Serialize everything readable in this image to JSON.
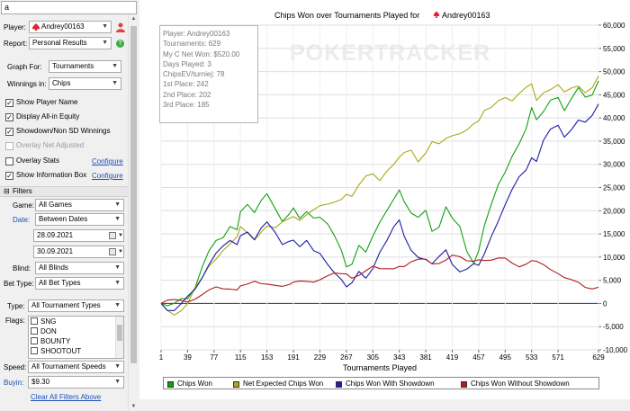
{
  "search": {
    "value": "a"
  },
  "player": {
    "label": "Player:",
    "value": "Andrey00163"
  },
  "report": {
    "label": "Report:",
    "value": "Personal Results"
  },
  "graph_for": {
    "label": "Graph For:",
    "value": "Tournaments"
  },
  "winnings_in": {
    "label": "Winnings in:",
    "value": "Chips"
  },
  "options": [
    {
      "label": "Show Player Name",
      "checked": true,
      "disabled": false
    },
    {
      "label": "Display All-in Equity",
      "checked": true,
      "disabled": false
    },
    {
      "label": "Showdown/Non SD Winnings",
      "checked": true,
      "disabled": false
    },
    {
      "label": "Overlay Net Adjusted",
      "checked": false,
      "disabled": true
    },
    {
      "label": "Overlay Stats",
      "checked": false,
      "disabled": false,
      "link": "Configure"
    },
    {
      "label": "Show Information Box",
      "checked": true,
      "disabled": false,
      "link": "Configure"
    }
  ],
  "filters": {
    "header": "Filters",
    "game": {
      "label": "Game:",
      "value": "All Games"
    },
    "date": {
      "label": "Date:",
      "value": "Between Dates",
      "from": "28.09.2021",
      "to": "30.09.2021"
    },
    "blind": {
      "label": "Blind:",
      "value": "All Blinds"
    },
    "bet_type": {
      "label": "Bet Type:",
      "value": "All Bet Types"
    },
    "type": {
      "label": "Type:",
      "value": "All Tournament Types"
    },
    "flags": {
      "label": "Flags:",
      "items": [
        "SNG",
        "DON",
        "BOUNTY",
        "SHOOTOUT"
      ]
    },
    "speed": {
      "label": "Speed:",
      "value": "All Tournament Speeds"
    },
    "buyin": {
      "label": "Buyin:",
      "value": "$9.30"
    },
    "clear_link": "Clear All Filters Above"
  },
  "info_box": {
    "lines": [
      "Player: Andrey00163",
      "Tournaments: 629",
      "My C Net Won: $520.00",
      "Days Played: 3",
      "ChipsEV/turniej: 78",
      "1st Place: 242",
      "2nd Place: 202",
      "3rd Place: 185"
    ]
  },
  "watermark": "POKERTRACKER",
  "colors": {
    "chips_won": "#11a011",
    "net_expected": "#a8a818",
    "with_showdown": "#1c1ca8",
    "without_showdown": "#b01c1c"
  },
  "chart_data": {
    "type": "line",
    "title": "Chips Won over Tournaments Played for",
    "title_player": "Andrey00163",
    "xlabel": "Tournaments Played",
    "ylabel": "",
    "xlim": [
      1,
      629
    ],
    "ylim": [
      -10000,
      60000
    ],
    "x_ticks": [
      1,
      39,
      77,
      115,
      153,
      191,
      229,
      267,
      305,
      343,
      381,
      419,
      457,
      495,
      533,
      571,
      629
    ],
    "y_ticks": [
      -10000,
      -5000,
      0,
      5000,
      10000,
      15000,
      20000,
      25000,
      30000,
      35000,
      40000,
      45000,
      50000,
      55000,
      60000
    ],
    "y_tick_labels": [
      "-10,000",
      "-5,000",
      "0",
      "5,000",
      "10,000",
      "15,000",
      "20,000",
      "25,000",
      "30,000",
      "35,000",
      "40,000",
      "45,000",
      "50,000",
      "55,000",
      "60,000"
    ],
    "grid": true,
    "legend_position": "bottom",
    "series": [
      {
        "name": "Chips Won",
        "color": "#11a011",
        "x": [
          1,
          10,
          20,
          30,
          39,
          50,
          60,
          70,
          80,
          90,
          100,
          110,
          115,
          125,
          135,
          145,
          153,
          165,
          175,
          185,
          191,
          200,
          210,
          220,
          229,
          240,
          250,
          260,
          267,
          275,
          285,
          295,
          305,
          315,
          325,
          335,
          343,
          350,
          360,
          370,
          381,
          390,
          400,
          410,
          419,
          430,
          440,
          450,
          457,
          465,
          475,
          485,
          495,
          505,
          515,
          525,
          533,
          540,
          550,
          560,
          571,
          580,
          590,
          600,
          610,
          620,
          629
        ],
        "y": [
          0,
          -1000,
          -500,
          1000,
          1500,
          4000,
          8000,
          11000,
          13000,
          14000,
          17000,
          16500,
          20000,
          21000,
          19000,
          22000,
          24000,
          21000,
          18000,
          19000,
          20000,
          18000,
          20000,
          19000,
          19000,
          17000,
          14000,
          11000,
          8000,
          9000,
          13000,
          11000,
          14000,
          17000,
          20000,
          23000,
          25000,
          22000,
          19000,
          18000,
          20000,
          16000,
          17000,
          21000,
          18000,
          16000,
          11000,
          9000,
          12000,
          17000,
          21000,
          25000,
          28000,
          32000,
          35000,
          38000,
          42000,
          39000,
          41000,
          44000,
          45000,
          42000,
          44000,
          46000,
          44000,
          45000,
          48000
        ]
      },
      {
        "name": "Net Expected Chips Won",
        "color": "#a8a818",
        "x": [
          1,
          10,
          20,
          30,
          39,
          50,
          60,
          70,
          80,
          90,
          100,
          110,
          115,
          125,
          135,
          145,
          153,
          165,
          175,
          185,
          191,
          200,
          210,
          220,
          229,
          240,
          250,
          260,
          267,
          275,
          285,
          295,
          305,
          315,
          325,
          335,
          343,
          350,
          360,
          370,
          381,
          390,
          400,
          410,
          419,
          430,
          440,
          450,
          457,
          465,
          475,
          485,
          495,
          505,
          515,
          525,
          533,
          540,
          550,
          560,
          571,
          580,
          590,
          600,
          610,
          620,
          629
        ],
        "y": [
          0,
          -1500,
          -2000,
          -1000,
          0,
          3000,
          5000,
          8000,
          10000,
          12000,
          13000,
          14000,
          16000,
          15000,
          14000,
          16000,
          17000,
          16000,
          17000,
          18000,
          19000,
          18500,
          19500,
          20000,
          20500,
          21000,
          22000,
          23000,
          24000,
          23000,
          25000,
          27000,
          28000,
          27000,
          29000,
          30000,
          31000,
          32000,
          33000,
          31000,
          33000,
          35000,
          34000,
          35000,
          36000,
          37000,
          38000,
          39000,
          39000,
          41000,
          42000,
          44000,
          45000,
          44000,
          45000,
          46000,
          47000,
          44000,
          46000,
          46500,
          47000,
          45000,
          46000,
          47000,
          46000,
          47000,
          49000
        ]
      },
      {
        "name": "Chips Won With Showdown",
        "color": "#1c1ca8",
        "x": [
          1,
          10,
          20,
          30,
          39,
          50,
          60,
          70,
          80,
          90,
          100,
          110,
          115,
          125,
          135,
          145,
          153,
          165,
          175,
          185,
          191,
          200,
          210,
          220,
          229,
          240,
          250,
          260,
          267,
          275,
          285,
          295,
          305,
          315,
          325,
          335,
          343,
          350,
          360,
          370,
          381,
          390,
          400,
          410,
          419,
          430,
          440,
          450,
          457,
          465,
          475,
          485,
          495,
          505,
          515,
          525,
          533,
          540,
          550,
          560,
          571,
          580,
          590,
          600,
          610,
          620,
          629
        ],
        "y": [
          0,
          -1000,
          -1500,
          -500,
          1000,
          3000,
          6000,
          9000,
          11000,
          12000,
          13000,
          12500,
          15000,
          16000,
          14000,
          16000,
          17000,
          15000,
          13000,
          14000,
          14000,
          12000,
          13000,
          11000,
          11000,
          9000,
          7000,
          5000,
          3000,
          4000,
          7000,
          6000,
          8000,
          11000,
          13000,
          16000,
          18000,
          15000,
          12000,
          10000,
          9000,
          8000,
          10000,
          12000,
          9000,
          7000,
          7000,
          8000,
          8000,
          11000,
          15000,
          18000,
          21000,
          24000,
          27000,
          29000,
          32000,
          31000,
          35000,
          37000,
          38000,
          36000,
          38000,
          40000,
          39000,
          40000,
          43000
        ]
      },
      {
        "name": "Chips Won Without Showdown",
        "color": "#b01c1c",
        "x": [
          1,
          10,
          20,
          30,
          39,
          50,
          60,
          70,
          80,
          90,
          100,
          110,
          115,
          125,
          135,
          145,
          153,
          165,
          175,
          185,
          191,
          200,
          210,
          220,
          229,
          240,
          250,
          260,
          267,
          275,
          285,
          295,
          305,
          315,
          325,
          335,
          343,
          350,
          360,
          370,
          381,
          390,
          400,
          410,
          419,
          430,
          440,
          450,
          457,
          465,
          475,
          485,
          495,
          505,
          515,
          525,
          533,
          540,
          550,
          560,
          571,
          580,
          590,
          600,
          610,
          620,
          629
        ],
        "y": [
          0,
          200,
          300,
          600,
          800,
          1500,
          2000,
          2500,
          3000,
          3000,
          3500,
          3500,
          4000,
          3800,
          4200,
          4000,
          4500,
          4500,
          4000,
          3800,
          4000,
          4500,
          5000,
          5200,
          5500,
          5800,
          6000,
          6000,
          6500,
          6000,
          6500,
          7000,
          7500,
          7000,
          7500,
          8000,
          8500,
          8000,
          8500,
          9000,
          9500,
          9000,
          9200,
          9500,
          10000,
          9500,
          9000,
          9500,
          10000,
          9500,
          9000,
          9200,
          9500,
          9000,
          8500,
          8800,
          9000,
          8500,
          8000,
          7500,
          7000,
          6000,
          5000,
          4000,
          3000,
          3200,
          3500
        ]
      }
    ]
  }
}
